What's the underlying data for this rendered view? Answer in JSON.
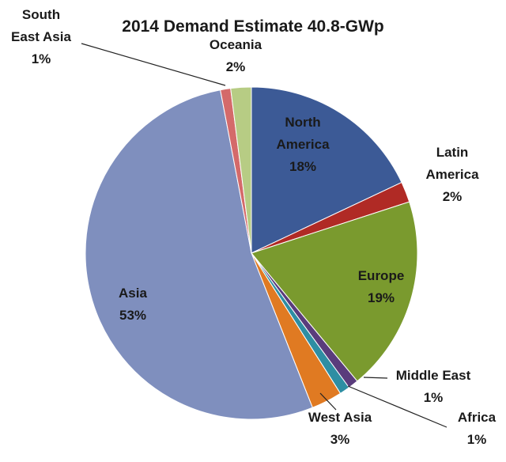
{
  "chart_data": {
    "type": "pie",
    "title": "2014 Demand Estimate 40.8-GWp",
    "slices": [
      {
        "label_lines": [
          "North",
          "America",
          "18%"
        ],
        "value": 18,
        "color": "#3c5a96"
      },
      {
        "label_lines": [
          "Latin",
          "America",
          "2%"
        ],
        "value": 2,
        "color": "#b02a25"
      },
      {
        "label_lines": [
          "Europe",
          "19%"
        ],
        "value": 19,
        "color": "#7a9a2e"
      },
      {
        "label_lines": [
          "Middle East",
          "1%"
        ],
        "value": 1,
        "color": "#5a3c7c"
      },
      {
        "label_lines": [
          "Africa",
          "1%"
        ],
        "value": 1,
        "color": "#2e8ea3"
      },
      {
        "label_lines": [
          "West Asia",
          "3%"
        ],
        "value": 3,
        "color": "#e07a22"
      },
      {
        "label_lines": [
          "Asia",
          "53%"
        ],
        "value": 53,
        "color": "#7f8fbe"
      },
      {
        "label_lines": [
          "South",
          "East Asia",
          "1%"
        ],
        "value": 1,
        "color": "#d46a6a"
      },
      {
        "label_lines": [
          "Oceania",
          "2%"
        ],
        "value": 2,
        "color": "#b7cc84"
      }
    ]
  }
}
